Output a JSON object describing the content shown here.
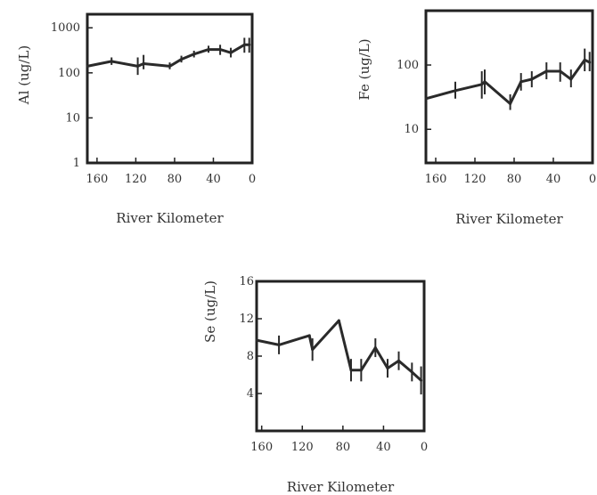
{
  "chart_data": [
    {
      "type": "line",
      "ylabel": "Al (ug/L)",
      "xlabel": "River Kilometer",
      "x_reversed": true,
      "xlim": [
        170,
        0
      ],
      "ylim": [
        1,
        2000
      ],
      "yscale": "log",
      "x_ticks": [
        160,
        120,
        80,
        40,
        0
      ],
      "x_tick_labels": [
        "160",
        "120",
        "80",
        "40",
        "0"
      ],
      "y_ticks": [
        1,
        10,
        100,
        1000
      ],
      "y_tick_labels": [
        "1",
        "10",
        "100",
        "1000"
      ],
      "x": [
        170,
        145,
        118,
        112,
        85,
        73,
        60,
        45,
        33,
        22,
        8,
        3
      ],
      "y": [
        140,
        180,
        140,
        160,
        140,
        200,
        260,
        330,
        330,
        280,
        420,
        420
      ],
      "err_low": [
        140,
        150,
        90,
        120,
        120,
        170,
        220,
        280,
        250,
        220,
        280,
        280
      ],
      "err_high": [
        140,
        220,
        220,
        250,
        170,
        240,
        310,
        400,
        420,
        360,
        600,
        600
      ]
    },
    {
      "type": "line",
      "ylabel": "Fe (ug/L)",
      "xlabel": "River Kilometer",
      "x_reversed": true,
      "xlim": [
        170,
        0
      ],
      "ylim": [
        3,
        700
      ],
      "yscale": "log",
      "x_ticks": [
        160,
        120,
        80,
        40,
        0
      ],
      "x_tick_labels": [
        "160",
        "120",
        "80",
        "40",
        "0"
      ],
      "y_ticks": [
        10,
        100
      ],
      "y_tick_labels": [
        "10",
        "100"
      ],
      "x": [
        170,
        140,
        113,
        110,
        84,
        73,
        62,
        47,
        33,
        22,
        8,
        3
      ],
      "y": [
        30,
        40,
        50,
        55,
        25,
        55,
        60,
        80,
        80,
        60,
        120,
        110
      ],
      "err_low": [
        30,
        30,
        30,
        35,
        20,
        40,
        45,
        60,
        55,
        45,
        80,
        80
      ],
      "err_high": [
        30,
        55,
        80,
        85,
        35,
        75,
        80,
        110,
        110,
        85,
        180,
        160
      ]
    },
    {
      "type": "line",
      "ylabel": "Se (ug/L)",
      "xlabel": "River Kilometer",
      "x_reversed": true,
      "xlim": [
        165,
        0
      ],
      "ylim": [
        0,
        16
      ],
      "yscale": "linear",
      "x_ticks": [
        160,
        120,
        80,
        40,
        0
      ],
      "x_tick_labels": [
        "160",
        "120",
        "80",
        "40",
        "0"
      ],
      "y_ticks": [
        4,
        8,
        12,
        16
      ],
      "y_tick_labels": [
        "4",
        "8",
        "12",
        "16"
      ],
      "x": [
        165,
        143,
        113,
        110,
        84,
        72,
        62,
        48,
        36,
        25,
        12,
        3
      ],
      "y": [
        9.7,
        9.2,
        10.2,
        8.7,
        11.8,
        6.5,
        6.5,
        8.9,
        6.7,
        7.5,
        6.3,
        5.4
      ],
      "err_low": [
        9.7,
        8.2,
        10.2,
        7.5,
        11.8,
        5.3,
        5.3,
        7.9,
        5.7,
        6.5,
        5.3,
        3.9
      ],
      "err_high": [
        9.7,
        10.2,
        10.2,
        9.9,
        11.8,
        7.7,
        7.7,
        9.9,
        7.7,
        8.5,
        7.3,
        6.9
      ]
    }
  ]
}
